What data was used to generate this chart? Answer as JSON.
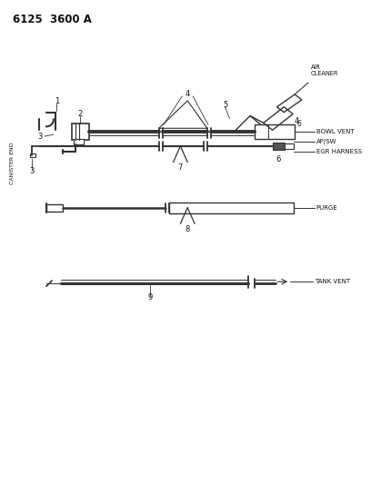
{
  "title": "6125  3600 A",
  "bg_color": "#ffffff",
  "line_color": "#333333",
  "text_color": "#111111",
  "fig_width": 4.08,
  "fig_height": 5.33,
  "dpi": 100,
  "labels": {
    "air_cleaner": "AIR\nCLEANER",
    "bowl_vent": "BOWL VENT",
    "ap_sw": "AP/SW",
    "egr_harness": "EGR HARNESS",
    "purge": "PURGE",
    "tank_vent": "TANK VENT",
    "canister_end": "CANISTER END"
  }
}
